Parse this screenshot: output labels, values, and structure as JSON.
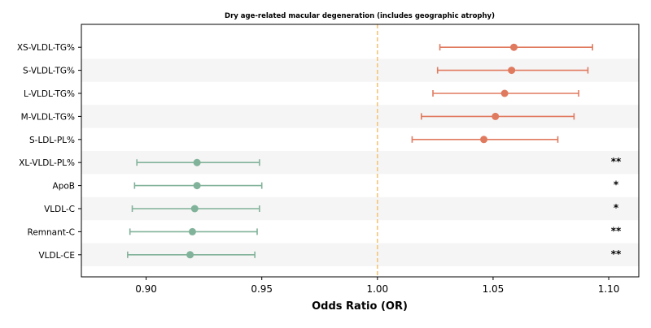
{
  "chart_data": {
    "type": "forest",
    "title": "Dry age-related macular degeneration (includes geographic atrophy)",
    "xlabel": "Odds Ratio (OR)",
    "xlim": [
      0.872,
      1.113
    ],
    "xticks": [
      "0.90",
      "0.95",
      "1.00",
      "1.05",
      "1.10"
    ],
    "xtick_values": [
      0.9,
      0.95,
      1.0,
      1.05,
      1.1
    ],
    "reference_line": 1.0,
    "reference_color": "#f5c16f",
    "colors": {
      "positive": "#e07a5f",
      "negative": "#81b29a",
      "band": "#f5f5f5"
    },
    "rows": [
      {
        "label": "XS-VLDL-TG%",
        "or": 1.059,
        "lo": 1.027,
        "hi": 1.093,
        "sig": ""
      },
      {
        "label": "S-VLDL-TG%",
        "or": 1.058,
        "lo": 1.026,
        "hi": 1.091,
        "sig": ""
      },
      {
        "label": "L-VLDL-TG%",
        "or": 1.055,
        "lo": 1.024,
        "hi": 1.087,
        "sig": ""
      },
      {
        "label": "M-VLDL-TG%",
        "or": 1.051,
        "lo": 1.019,
        "hi": 1.085,
        "sig": ""
      },
      {
        "label": "S-LDL-PL%",
        "or": 1.046,
        "lo": 1.015,
        "hi": 1.078,
        "sig": ""
      },
      {
        "label": "XL-VLDL-PL%",
        "or": 0.922,
        "lo": 0.896,
        "hi": 0.949,
        "sig": "**"
      },
      {
        "label": "ApoB",
        "or": 0.922,
        "lo": 0.895,
        "hi": 0.95,
        "sig": "*"
      },
      {
        "label": "VLDL-C",
        "or": 0.921,
        "lo": 0.894,
        "hi": 0.949,
        "sig": "*"
      },
      {
        "label": "Remnant-C",
        "or": 0.92,
        "lo": 0.893,
        "hi": 0.948,
        "sig": "**"
      },
      {
        "label": "VLDL-CE",
        "or": 0.919,
        "lo": 0.892,
        "hi": 0.947,
        "sig": "**"
      }
    ]
  }
}
